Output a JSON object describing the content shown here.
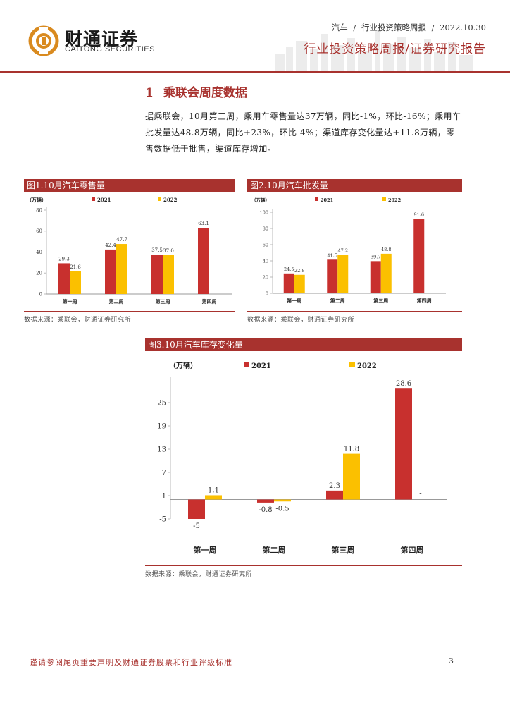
{
  "header": {
    "brand_cn": "财通证券",
    "brand_en": "CAITONG SECURITIES",
    "category": "汽车",
    "report_kind": "行业投资策略周报",
    "date": "2022.10.30",
    "report_title": "行业投资策略周报/证券研究报告",
    "separator": "/"
  },
  "section": {
    "number": "1",
    "title": "乘联会周度数据",
    "paragraph": "据乘联会，10月第三周，乘用车零售量达37万辆，同比-1%，环比-16%；乘用车批发量达48.8万辆，同比+23%，环比-4%；渠道库存变化量达+11.8万辆，零售数据低于批售，渠道库存增加。"
  },
  "figures": [
    {
      "caption": "图1.10月汽车零售量",
      "source": "数据来源：乘联会，财通证券研究所"
    },
    {
      "caption": "图2.10月汽车批发量",
      "source": "数据来源：乘联会，财通证券研究所"
    },
    {
      "caption": "图3.10月汽车库存变化量",
      "source": "数据来源：乘联会，财通证券研究所"
    }
  ],
  "chart_data": [
    {
      "type": "bar",
      "title": "图1.10月汽车零售量",
      "unit": "（万辆）",
      "categories": [
        "第一周",
        "第二周",
        "第三周",
        "第四周"
      ],
      "series": [
        {
          "name": "2021",
          "values": [
            29.3,
            42.4,
            37.5,
            63.1
          ],
          "labels": [
            "29.3",
            "42.4",
            "37.5",
            "63.1"
          ],
          "color": "#c8302e"
        },
        {
          "name": "2022",
          "values": [
            21.6,
            47.7,
            37.0,
            null
          ],
          "labels": [
            "21.6",
            "47.7",
            "37.0",
            ""
          ],
          "color": "#fbc000"
        }
      ],
      "ylim": [
        0,
        80
      ],
      "yticks": [
        0,
        20,
        40,
        60,
        80
      ],
      "legend": "top"
    },
    {
      "type": "bar",
      "title": "图2.10月汽车批发量",
      "unit": "（万辆）",
      "categories": [
        "第一周",
        "第二周",
        "第三周",
        "第四周"
      ],
      "series": [
        {
          "name": "2021",
          "values": [
            24.5,
            41.5,
            39.7,
            91.6
          ],
          "labels": [
            "24.5",
            "41.5",
            "39.7",
            "91.6"
          ],
          "color": "#c8302e"
        },
        {
          "name": "2022",
          "values": [
            22.8,
            47.2,
            48.8,
            null
          ],
          "labels": [
            "22.8",
            "47.2",
            "48.8",
            ""
          ],
          "color": "#fbc000"
        }
      ],
      "ylim": [
        0,
        100
      ],
      "yticks": [
        0,
        20,
        40,
        60,
        80,
        100
      ],
      "legend": "top"
    },
    {
      "type": "bar",
      "title": "图3.10月汽车库存变化量",
      "unit": "（万辆）",
      "categories": [
        "第一周",
        "第二周",
        "第三周",
        "第四周"
      ],
      "series": [
        {
          "name": "2021",
          "values": [
            -5,
            -0.8,
            2.3,
            28.6
          ],
          "labels": [
            "-5",
            "-0.8",
            "2.3",
            "28.6"
          ],
          "color": "#c8302e"
        },
        {
          "name": "2022",
          "values": [
            1.1,
            -0.5,
            11.8,
            null
          ],
          "labels": [
            "1.1",
            "-0.5",
            "11.8",
            "-"
          ],
          "color": "#fbc000"
        }
      ],
      "ylim": [
        -5,
        31
      ],
      "yticks": [
        -5,
        1,
        7,
        13,
        19,
        25
      ],
      "legend": "top"
    }
  ],
  "footer": {
    "disclaimer": "谨请参阅尾页重要声明及财通证券股票和行业评级标准",
    "page_number": "3"
  },
  "colors": {
    "brand_red": "#a8322e",
    "series_2021": "#c8302e",
    "series_2022": "#fbc000"
  }
}
